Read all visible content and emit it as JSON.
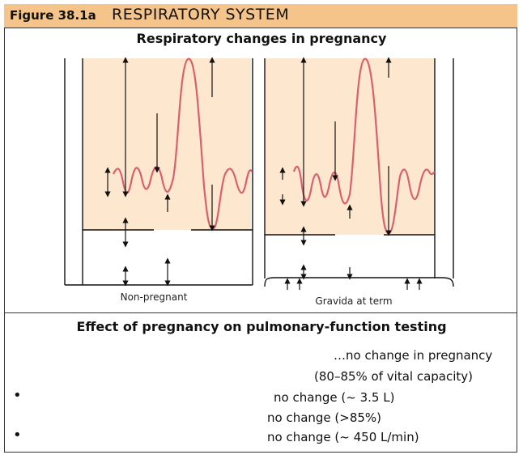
{
  "header": {
    "figure_label": "Figure 38.1a",
    "title": "RESPIRATORY SYSTEM"
  },
  "diagram": {
    "title": "Respiratory changes in pregnancy",
    "panels": [
      {
        "caption": "Non-pregnant"
      },
      {
        "caption": "Gravida at term"
      }
    ],
    "colors": {
      "fill": "#fde7cf",
      "curve": "#d9606e",
      "lines": "#111111"
    }
  },
  "table": {
    "title": "Effect of pregnancy on pulmonary-function testing",
    "rows": [
      {
        "bullet": "",
        "text": "…no change in pregnancy"
      },
      {
        "bullet": "",
        "text": "(80–85% of vital capacity)"
      },
      {
        "bullet": "•",
        "text": "no change (~ 3.5 L)"
      },
      {
        "bullet": "",
        "text": "no change (>85%)"
      },
      {
        "bullet": "•",
        "text": "no change (~ 450 L/min)"
      }
    ]
  }
}
